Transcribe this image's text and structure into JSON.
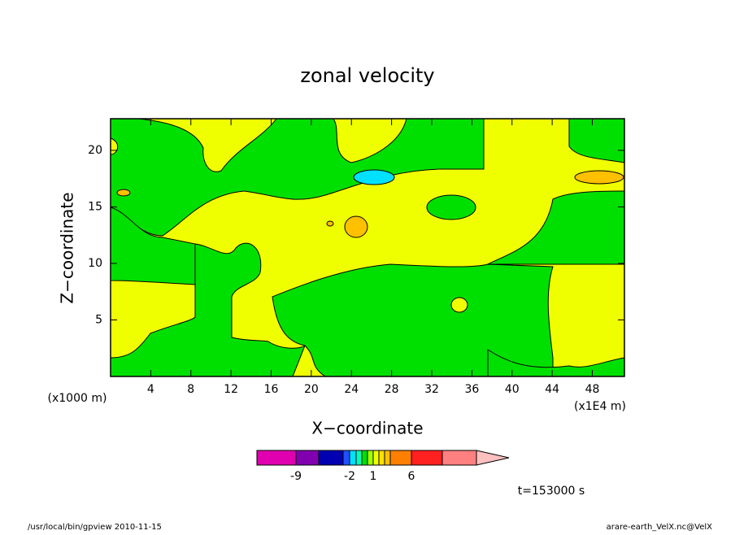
{
  "chart_data": {
    "type": "contour",
    "title": "zonal velocity",
    "x_label": "X−coordinate",
    "y_label": "Z−coordinate",
    "y_unit_label": "(x1000 m)",
    "x_unit_label": "(x1E4 m)",
    "xlim": [
      0,
      51.2
    ],
    "xticks": [
      4,
      8,
      12,
      16,
      20,
      24,
      28,
      32,
      36,
      40,
      44,
      48
    ],
    "ylim": [
      0,
      22.8
    ],
    "yticks": [
      5,
      10,
      15,
      20
    ],
    "colorbar": {
      "colors": [
        "#e000b0",
        "#8000b0",
        "#0000b0",
        "#2050ff",
        "#00e0ff",
        "#00ffc0",
        "#00e000",
        "#a0ff00",
        "#f0ff00",
        "#ffe000",
        "#ffc000",
        "#ff8000",
        "#ff2020",
        "#ff8080",
        "#ffc0c0"
      ],
      "ticks": [
        -9,
        -2,
        1,
        6
      ]
    },
    "annotation": "t=153000 s"
  },
  "footer": {
    "left": "/usr/local/bin/gpview  2010-11-15",
    "right": "arare-earth_VelX.nc@VelX"
  }
}
